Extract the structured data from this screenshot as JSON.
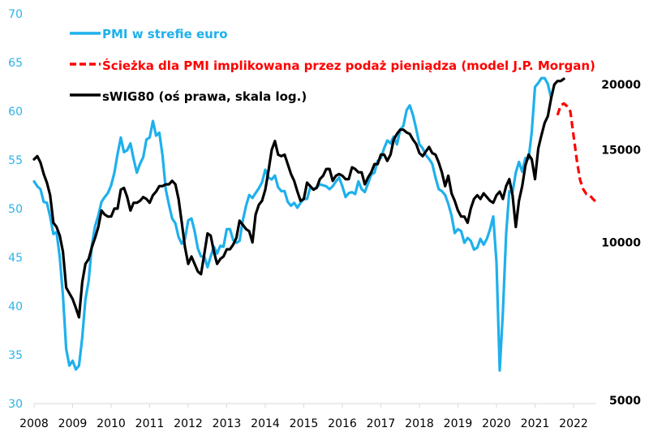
{
  "chart_data": {
    "type": "line",
    "title": "",
    "xlabel": "",
    "ylabel_left": "",
    "ylabel_right": "",
    "x_ticks": [
      "2008",
      "2009",
      "2010",
      "2011",
      "2012",
      "2013",
      "2014",
      "2015",
      "2016",
      "2017",
      "2018",
      "2019",
      "2020",
      "2021",
      "2022"
    ],
    "y_left": {
      "min": 30,
      "max": 70,
      "ticks": [
        "30",
        "35",
        "40",
        "45",
        "50",
        "55",
        "60",
        "65",
        "70"
      ],
      "color": "#2bb3ea"
    },
    "y_right": {
      "scale": "log",
      "min": 5000,
      "max": 20000,
      "ticks": [
        "5000",
        "10000",
        "15000",
        "20000"
      ]
    },
    "grid": false,
    "legend_position": "top-left",
    "legend": [
      {
        "label": "PMI w strefie euro",
        "color": "#1fb0ec",
        "style": "solid"
      },
      {
        "label": "Ścieżka dla PMI implikowana przez podaż pieniądza (model J.P. Morgan)",
        "color": "#ff0000",
        "style": "dashed"
      },
      {
        "label": "sWIG80 (oś prawa, skala log.)",
        "color": "#000000",
        "style": "solid"
      }
    ],
    "start": "2008-01",
    "frequency": "monthly",
    "series": [
      {
        "name": "PMI w strefie euro",
        "axis": "left",
        "color": "#1fb0ec",
        "values": [
          52.8,
          52.3,
          52.0,
          50.7,
          50.6,
          49.2,
          47.4,
          47.6,
          45.0,
          41.1,
          35.6,
          33.9,
          34.4,
          33.5,
          33.9,
          36.8,
          40.7,
          42.6,
          46.3,
          48.2,
          49.3,
          50.7,
          51.2,
          51.6,
          52.4,
          53.7,
          55.6,
          57.3,
          55.8,
          56.0,
          56.7,
          55.1,
          53.7,
          54.6,
          55.3,
          57.1,
          57.3,
          59.0,
          57.5,
          57.8,
          55.5,
          52.0,
          50.4,
          49.0,
          48.5,
          47.1,
          46.4,
          46.9,
          48.8,
          49.0,
          47.7,
          45.9,
          45.1,
          45.1,
          44.0,
          45.1,
          46.1,
          45.4,
          46.2,
          46.1,
          47.9,
          47.9,
          46.8,
          46.5,
          46.7,
          48.8,
          50.3,
          51.4,
          51.1,
          51.6,
          52.1,
          52.7,
          54.0,
          53.2,
          53.0,
          53.4,
          52.2,
          51.8,
          51.8,
          50.7,
          50.3,
          50.6,
          50.1,
          50.6,
          51.0,
          51.0,
          52.2,
          52.0,
          52.2,
          52.5,
          52.4,
          52.3,
          52.0,
          52.3,
          52.8,
          53.2,
          52.3,
          51.2,
          51.6,
          51.7,
          51.5,
          52.8,
          52.0,
          51.7,
          52.6,
          53.5,
          53.7,
          54.9,
          55.2,
          56.2,
          57.0,
          56.7,
          57.4,
          56.6,
          58.1,
          58.5,
          60.1,
          60.6,
          59.6,
          58.2,
          56.6,
          56.2,
          55.5,
          55.1,
          54.6,
          53.2,
          52.0,
          51.8,
          51.4,
          50.5,
          49.3,
          47.5,
          47.9,
          47.7,
          46.5,
          47.0,
          46.7,
          45.8,
          46.0,
          46.9,
          46.3,
          46.9,
          47.9,
          49.2,
          44.5,
          33.4,
          39.4,
          47.4,
          51.8,
          51.7,
          53.7,
          54.8,
          53.8,
          55.2,
          55.1,
          57.9,
          62.5,
          62.9,
          63.4,
          63.4,
          62.8,
          61.4
        ]
      },
      {
        "name": "sWIG80",
        "axis": "right",
        "color": "#000000",
        "values": [
          14400,
          14600,
          14200,
          13500,
          13000,
          12300,
          10900,
          10700,
          10300,
          9600,
          8200,
          8000,
          7800,
          7500,
          7200,
          8400,
          9100,
          9300,
          9800,
          10200,
          10700,
          11500,
          11300,
          11200,
          11200,
          11600,
          11600,
          12600,
          12700,
          12200,
          11500,
          11900,
          11900,
          12000,
          12200,
          12100,
          11900,
          12300,
          12500,
          12800,
          12800,
          12900,
          12900,
          13100,
          12900,
          12100,
          10900,
          9800,
          9100,
          9400,
          9100,
          8800,
          8700,
          9500,
          10400,
          10300,
          9600,
          9100,
          9300,
          9400,
          9700,
          9700,
          9900,
          10200,
          11000,
          10800,
          10600,
          10500,
          10000,
          11300,
          11800,
          12000,
          12600,
          13700,
          15000,
          15600,
          14700,
          14600,
          14700,
          14100,
          13500,
          13100,
          12500,
          12000,
          12100,
          13000,
          12800,
          12600,
          12700,
          13200,
          13400,
          13800,
          13800,
          13100,
          13400,
          13500,
          13400,
          13200,
          13200,
          13900,
          13800,
          13600,
          13600,
          12900,
          13300,
          13600,
          14100,
          14100,
          14700,
          14700,
          14300,
          14700,
          15700,
          16100,
          16400,
          16400,
          16200,
          16100,
          15700,
          15400,
          14800,
          14600,
          14900,
          15200,
          14800,
          14700,
          14200,
          13600,
          12800,
          13400,
          12400,
          12000,
          11500,
          11200,
          11200,
          10900,
          11600,
          12100,
          12300,
          12100,
          12400,
          12200,
          12000,
          11900,
          12300,
          12500,
          12100,
          12800,
          13200,
          12300,
          10700,
          12000,
          12800,
          14000,
          14700,
          14400,
          13200,
          15100,
          16000,
          16900,
          17400,
          18800,
          20000,
          20300,
          20300,
          20500
        ]
      },
      {
        "name": "Ścieżka dla PMI implikowana przez podaż pieniądza (model J.P. Morgan)",
        "axis": "left",
        "style": "dashed",
        "color": "#ff0000",
        "start": "2021-08",
        "values": [
          59.6,
          60.6,
          60.8,
          60.5,
          60.0,
          57.5,
          55.0,
          53.0,
          52.0,
          51.5,
          51.4,
          51.0,
          50.7
        ]
      }
    ]
  }
}
